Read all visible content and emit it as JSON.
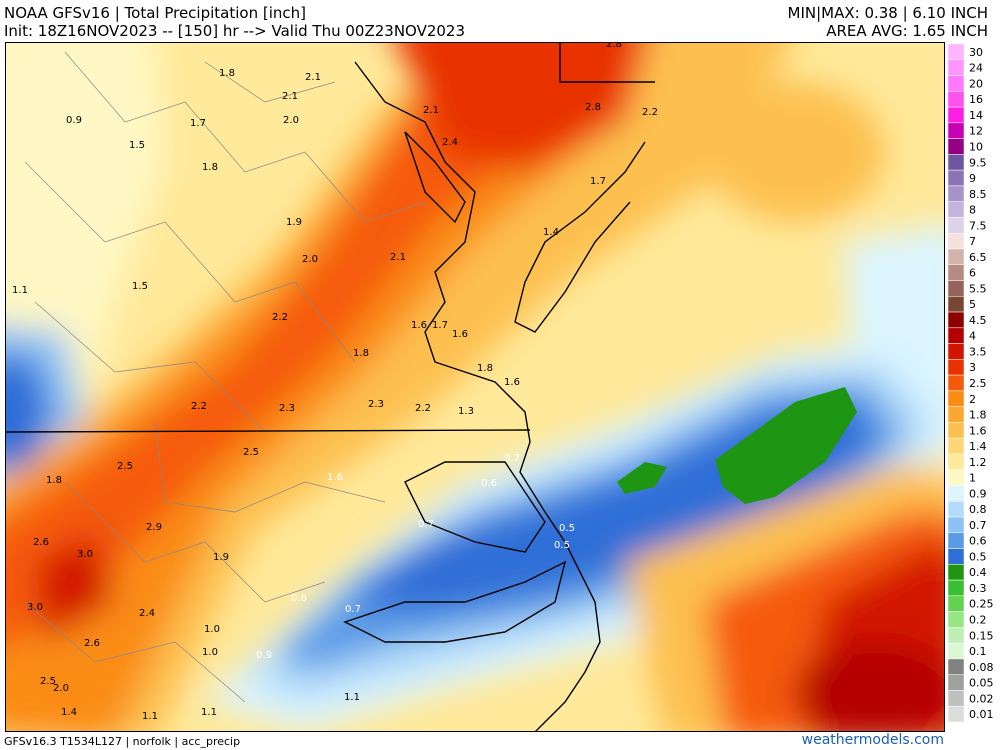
{
  "header": {
    "title": "NOAA GFSv16 |  Total Precipitation [inch]",
    "init": "Init: 18Z16NOV2023 -- [150] hr --> Valid Thu 00Z23NOV2023",
    "minmax": "MIN|MAX: 0.38 | 6.10 INCH",
    "area_avg": "AREA AVG: 1.65 INCH"
  },
  "legend": [
    {
      "label": "30",
      "color": "#ffb4ff"
    },
    {
      "label": "24",
      "color": "#ff96ff"
    },
    {
      "label": "20",
      "color": "#ff78ff"
    },
    {
      "label": "16",
      "color": "#ff50f0"
    },
    {
      "label": "14",
      "color": "#ff1ee6"
    },
    {
      "label": "12",
      "color": "#c800b4"
    },
    {
      "label": "10",
      "color": "#960082"
    },
    {
      "label": "9.5",
      "color": "#6f56a0"
    },
    {
      "label": "9",
      "color": "#8a74b4"
    },
    {
      "label": "8.5",
      "color": "#a693c8"
    },
    {
      "label": "8",
      "color": "#c2b4dc"
    },
    {
      "label": "7.5",
      "color": "#dcd2ec"
    },
    {
      "label": "7",
      "color": "#f5e0dc"
    },
    {
      "label": "6.5",
      "color": "#d2b4aa"
    },
    {
      "label": "6",
      "color": "#b48c82"
    },
    {
      "label": "5.5",
      "color": "#96645a"
    },
    {
      "label": "5",
      "color": "#784632"
    },
    {
      "label": "4.5",
      "color": "#8c0000"
    },
    {
      "label": "4",
      "color": "#b40000"
    },
    {
      "label": "3.5",
      "color": "#d21400"
    },
    {
      "label": "3",
      "color": "#e83200"
    },
    {
      "label": "2.5",
      "color": "#f55a0a"
    },
    {
      "label": "2",
      "color": "#fa8c14"
    },
    {
      "label": "1.8",
      "color": "#fca830"
    },
    {
      "label": "1.6",
      "color": "#fdc050"
    },
    {
      "label": "1.4",
      "color": "#fed774"
    },
    {
      "label": "1.2",
      "color": "#ffe99a"
    },
    {
      "label": "1",
      "color": "#fff8c4"
    },
    {
      "label": "0.9",
      "color": "#dcf5ff"
    },
    {
      "label": "0.8",
      "color": "#b4dcfa"
    },
    {
      "label": "0.7",
      "color": "#8cc3f5"
    },
    {
      "label": "0.6",
      "color": "#5a9be6"
    },
    {
      "label": "0.5",
      "color": "#2d6ed7"
    },
    {
      "label": "0.4",
      "color": "#1e9614"
    },
    {
      "label": "0.3",
      "color": "#3cbe32"
    },
    {
      "label": "0.25",
      "color": "#64d250"
    },
    {
      "label": "0.2",
      "color": "#96e682"
    },
    {
      "label": "0.15",
      "color": "#bef0b4"
    },
    {
      "label": "0.1",
      "color": "#dcf8d2"
    },
    {
      "label": "0.08",
      "color": "#828282"
    },
    {
      "label": "0.05",
      "color": "#a0a0a0"
    },
    {
      "label": "0.02",
      "color": "#c0c0c0"
    },
    {
      "label": "0.01",
      "color": "#dcdcdc"
    }
  ],
  "map_labels": [
    "2.8",
    "1.8",
    "2.1",
    "2.1",
    "2.1",
    "0.9",
    "1.7",
    "2.0",
    "2.8",
    "2.4",
    "2.2",
    "1.5",
    "1.8",
    "1.7",
    "1.9",
    "1.4",
    "2.0",
    "2.1",
    "1.1",
    "1.5",
    "2.2",
    "1.6",
    "1.7",
    "1.6",
    "1.8",
    "1.8",
    "1.6",
    "2.2",
    "2.3",
    "2.3",
    "2.2",
    "1.3",
    "2.5",
    "0.7",
    "2.5",
    "1.6",
    "1.8",
    "0.6",
    "2.9",
    "0.7",
    "0.5",
    "2.6",
    "3.0",
    "0.5",
    "1.9",
    "0.8",
    "0.7",
    "3.0",
    "2.4",
    "1.0",
    "2.6",
    "1.0",
    "0.9",
    "2.5",
    "2.0",
    "1.1",
    "1.4",
    "1.1",
    "1.1"
  ],
  "footer": {
    "info": "GFSv16.3 T1534L127 | norfolk | acc_precip",
    "site": "weathermodels.com"
  }
}
